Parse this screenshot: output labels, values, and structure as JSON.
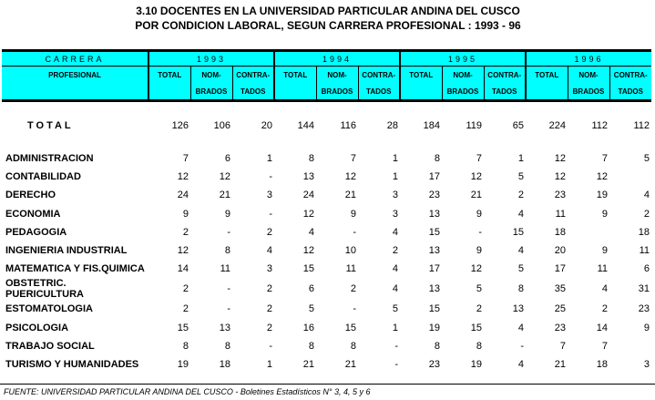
{
  "title_line1": "3.10   DOCENTES EN LA UNIVERSIDAD PARTICULAR ANDINA DEL CUSCO",
  "title_line2": "POR CONDICION LABORAL, SEGUN CARRERA PROFESIONAL : 1993 - 96",
  "header": {
    "carrera_1": "CARRERA",
    "carrera_2": "PROFESIONAL",
    "years": [
      "1993",
      "1994",
      "1995",
      "1996"
    ],
    "sub_top": [
      "TOTAL",
      "NOM-",
      "CONTRA-"
    ],
    "sub_bottom": [
      "",
      "BRADOS",
      "TADOS"
    ]
  },
  "colors": {
    "header_bg": "#00ffff"
  },
  "total_row": {
    "label": "TOTAL",
    "values": [
      "126",
      "106",
      "20",
      "144",
      "116",
      "28",
      "184",
      "119",
      "65",
      "224",
      "112",
      "112"
    ]
  },
  "rows": [
    {
      "label": "ADMINISTRACION",
      "values": [
        "7",
        "6",
        "1",
        "8",
        "7",
        "1",
        "8",
        "7",
        "1",
        "12",
        "7",
        "5"
      ]
    },
    {
      "label": "CONTABILIDAD",
      "values": [
        "12",
        "12",
        "-",
        "13",
        "12",
        "1",
        "17",
        "12",
        "5",
        "12",
        "12",
        ""
      ]
    },
    {
      "label": "DERECHO",
      "values": [
        "24",
        "21",
        "3",
        "24",
        "21",
        "3",
        "23",
        "21",
        "2",
        "23",
        "19",
        "4"
      ]
    },
    {
      "label": "ECONOMIA",
      "values": [
        "9",
        "9",
        "-",
        "12",
        "9",
        "3",
        "13",
        "9",
        "4",
        "11",
        "9",
        "2"
      ]
    },
    {
      "label": "PEDAGOGIA",
      "values": [
        "2",
        "-",
        "2",
        "4",
        "-",
        "4",
        "15",
        "-",
        "15",
        "18",
        "",
        "18"
      ]
    },
    {
      "label": "INGENIERIA INDUSTRIAL",
      "values": [
        "12",
        "8",
        "4",
        "12",
        "10",
        "2",
        "13",
        "9",
        "4",
        "20",
        "9",
        "11"
      ]
    },
    {
      "label": "MATEMATICA Y FIS.QUIMICA",
      "values": [
        "14",
        "11",
        "3",
        "15",
        "11",
        "4",
        "17",
        "12",
        "5",
        "17",
        "11",
        "6"
      ]
    },
    {
      "label": "OBSTETRIC. PUERICULTURA",
      "values": [
        "2",
        "-",
        "2",
        "6",
        "2",
        "4",
        "13",
        "5",
        "8",
        "35",
        "4",
        "31"
      ]
    },
    {
      "label": "ESTOMATOLOGIA",
      "values": [
        "2",
        "-",
        "2",
        "5",
        "-",
        "5",
        "15",
        "2",
        "13",
        "25",
        "2",
        "23"
      ]
    },
    {
      "label": "PSICOLOGIA",
      "values": [
        "15",
        "13",
        "2",
        "16",
        "15",
        "1",
        "19",
        "15",
        "4",
        "23",
        "14",
        "9"
      ]
    },
    {
      "label": "TRABAJO SOCIAL",
      "values": [
        "8",
        "8",
        "-",
        "8",
        "8",
        "-",
        "8",
        "8",
        "-",
        "7",
        "7",
        ""
      ]
    },
    {
      "label": "TURISMO Y HUMANIDADES",
      "values": [
        "19",
        "18",
        "1",
        "21",
        "21",
        "-",
        "23",
        "19",
        "4",
        "21",
        "18",
        "3"
      ]
    }
  ],
  "footer": "FUENTE:  UNIVERSIDAD PARTICULAR ANDINA DEL CUSCO - Boletines Estadísticos N° 3, 4, 5 y 6"
}
